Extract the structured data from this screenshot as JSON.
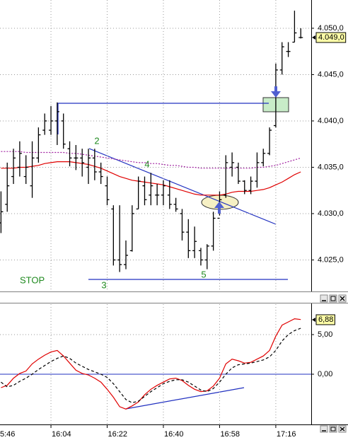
{
  "chart_data": [
    {
      "type": "ohlc",
      "categories": [
        null,
        null,
        null,
        null,
        null,
        null,
        null,
        null,
        "16:04",
        null,
        null,
        null,
        null,
        null,
        null,
        null,
        null,
        "16:22",
        null,
        null,
        null,
        null,
        null,
        null,
        null,
        null,
        "16:40",
        null,
        null,
        null,
        null,
        null,
        null,
        null,
        null,
        "16:58",
        null,
        null,
        null,
        null,
        null,
        null,
        null,
        null,
        "17:16",
        null,
        null,
        null,
        null
      ],
      "first_time_label": "5:46",
      "open": [
        4029,
        4031,
        4034,
        4035,
        4034,
        4033,
        4036,
        4039,
        4039,
        4040,
        4040,
        4037,
        4036,
        4036,
        4035,
        4036,
        4034.5,
        4033,
        4030.5,
        4025,
        4024.5,
        4026,
        4030.5,
        4033,
        4032,
        4032,
        4032,
        4032,
        4031,
        4030,
        4028,
        4026,
        4026,
        4025,
        4026.5,
        4029.5,
        4032,
        4035,
        4035,
        4033.5,
        4032.5,
        4033.5,
        4035.5,
        4036.5,
        4039.5,
        4045.5,
        4047.5,
        4048.5,
        4049
      ],
      "high": [
        4032.4,
        4035.5,
        4037,
        4037.8,
        4036.3,
        4037.8,
        4039.3,
        4040.8,
        4041.6,
        4042,
        4040.8,
        4037.8,
        4037.4,
        4037,
        4037,
        4037,
        4035.5,
        4034,
        4030.9,
        4030.9,
        4027.1,
        4030.9,
        4034,
        4034,
        4034.4,
        4033.2,
        4033.6,
        4033.6,
        4031.7,
        4030.5,
        4029.4,
        4028.6,
        4026.3,
        4026.7,
        4030.2,
        4032.4,
        4036.3,
        4036.6,
        4035.5,
        4033.6,
        4034,
        4036.6,
        4037,
        4039.3,
        4046.2,
        4048.5,
        4048.5,
        4051.9,
        4050
      ],
      "low": [
        4027.9,
        4030.2,
        4033.2,
        4034,
        4033.2,
        4031.7,
        4035.5,
        4038.5,
        4038.5,
        4037.4,
        4037,
        4035.1,
        4034.7,
        4034,
        4033.2,
        4033.6,
        4033.2,
        4030.9,
        4024.4,
        4023.7,
        4024,
        4025.9,
        4030.5,
        4030.9,
        4030.9,
        4030.9,
        4030.9,
        4030.5,
        4030.2,
        4027.1,
        4025.2,
        4025.2,
        4024.4,
        4024,
        4026,
        4029.8,
        4031.7,
        4034,
        4033.2,
        4032.1,
        4032.1,
        4032.8,
        4035.1,
        4036.3,
        4039.3,
        4045,
        4046.9,
        4048.5,
        4048.9
      ],
      "close": [
        4030.2,
        4033,
        4036,
        4036.5,
        4035,
        4036,
        4038.5,
        4040,
        4040,
        4041,
        4037.5,
        4036,
        4036,
        4035.5,
        4036,
        4034.5,
        4034,
        4031.5,
        4025,
        4024.5,
        4025.5,
        4030,
        4033.5,
        4031.5,
        4033,
        4032,
        4033,
        4031,
        4030.5,
        4028,
        4026,
        4027,
        4025,
        4026.5,
        4029.5,
        4031.5,
        4035.5,
        4035.5,
        4033.5,
        4032.5,
        4033.5,
        4035.5,
        4036.5,
        4039,
        4045.5,
        4048,
        4047.5,
        4049.5,
        4049
      ],
      "color": "#000000",
      "series": [
        {
          "color": "#e00000",
          "style": "solid",
          "values": [
            4034.9,
            4034.9,
            4034.9,
            4035.0,
            4035.0,
            4035.1,
            4035.2,
            4035.4,
            4035.5,
            4035.6,
            4035.6,
            4035.6,
            4035.5,
            4035.4,
            4035.3,
            4035.1,
            4034.9,
            4034.6,
            4034.3,
            4034.0,
            4033.8,
            4033.6,
            4033.5,
            4033.4,
            4033.3,
            4033.2,
            4033.1,
            4032.9,
            4032.7,
            4032.5,
            4032.3,
            4032.1,
            4032.0,
            4032.0,
            4032.0,
            4032.0,
            4032.1,
            4032.3,
            4032.4,
            4032.4,
            4032.4,
            4032.5,
            4032.6,
            4032.8,
            4033.1,
            4033.4,
            4033.8,
            4034.2,
            4034.5
          ]
        },
        {
          "color": "#a020a0",
          "style": "dotted",
          "values": [
            4036.7,
            4036.7,
            4036.7,
            4036.7,
            4036.6,
            4036.6,
            4036.6,
            4036.6,
            4036.6,
            4036.6,
            4036.6,
            4036.5,
            4036.5,
            4036.4,
            4036.3,
            4036.2,
            4036.1,
            4036.0,
            4035.9,
            4035.8,
            4035.7,
            4035.6,
            4035.5,
            4035.5,
            4035.4,
            4035.4,
            4035.3,
            4035.2,
            4035.2,
            4035.1,
            4035.0,
            4035.0,
            4034.9,
            4034.9,
            4034.9,
            4034.9,
            4034.9,
            4034.9,
            4034.9,
            4034.9,
            4034.9,
            4035.0,
            4035.0,
            4035.1,
            4035.2,
            4035.4,
            4035.6,
            4035.8,
            4036.0
          ]
        }
      ],
      "ylim": [
        4021.6,
        4053.05
      ],
      "yticks": [
        {
          "value": 4025,
          "label": "4.025,0"
        },
        {
          "value": 4030,
          "label": "4.030,0"
        },
        {
          "value": 4035,
          "label": "4.035,0"
        },
        {
          "value": 4040,
          "label": "4.040,0"
        },
        {
          "value": 4045,
          "label": "4.045,0"
        },
        {
          "value": 4050,
          "label": "4.050,0"
        }
      ],
      "last_value": {
        "value": 4049,
        "label": "4.049,0"
      },
      "grid": true,
      "annotations": [
        "2",
        "4",
        "3",
        "5",
        "STOP"
      ]
    },
    {
      "type": "line",
      "series": [
        {
          "color": "#e00000",
          "style": "solid",
          "values": [
            -1.7,
            -1.4,
            -0.5,
            0.1,
            0.4,
            1.3,
            1.9,
            2.4,
            2.8,
            3.0,
            2.3,
            1.4,
            0.5,
            0.1,
            -0.1,
            -0.5,
            -1.0,
            -1.9,
            -2.9,
            -4.1,
            -4.4,
            -4.0,
            -3.5,
            -2.6,
            -1.9,
            -1.4,
            -1.0,
            -0.6,
            -0.5,
            -0.8,
            -1.4,
            -1.9,
            -2.2,
            -2.1,
            -1.5,
            -0.5,
            1.3,
            1.9,
            1.7,
            1.4,
            1.5,
            1.9,
            2.3,
            3.0,
            4.8,
            6.2,
            6.6,
            7.0,
            6.9
          ]
        },
        {
          "color": "#000000",
          "style": "dashed",
          "values": [
            -1.0,
            -1.6,
            -1.4,
            -0.9,
            -0.5,
            0.0,
            0.6,
            1.1,
            1.6,
            2.0,
            2.3,
            2.0,
            1.4,
            1.0,
            0.6,
            0.3,
            0.0,
            -0.4,
            -1.2,
            -2.2,
            -3.2,
            -3.6,
            -3.4,
            -2.8,
            -2.2,
            -1.7,
            -1.2,
            -0.9,
            -0.7,
            -0.7,
            -1.0,
            -1.5,
            -2.0,
            -2.2,
            -1.8,
            -1.0,
            0.0,
            0.8,
            1.2,
            1.3,
            1.4,
            1.6,
            1.8,
            2.2,
            3.0,
            4.2,
            5.0,
            5.5,
            5.8
          ]
        }
      ],
      "ylim": [
        -6.34,
        8.84
      ],
      "yticks": [
        {
          "value": 5,
          "label": "5,00"
        },
        {
          "value": 0,
          "label": "0,00"
        }
      ],
      "zero_line_color": "#2030c0",
      "last_value": {
        "value": 6.88,
        "label": "6,88"
      },
      "grid": true
    }
  ]
}
